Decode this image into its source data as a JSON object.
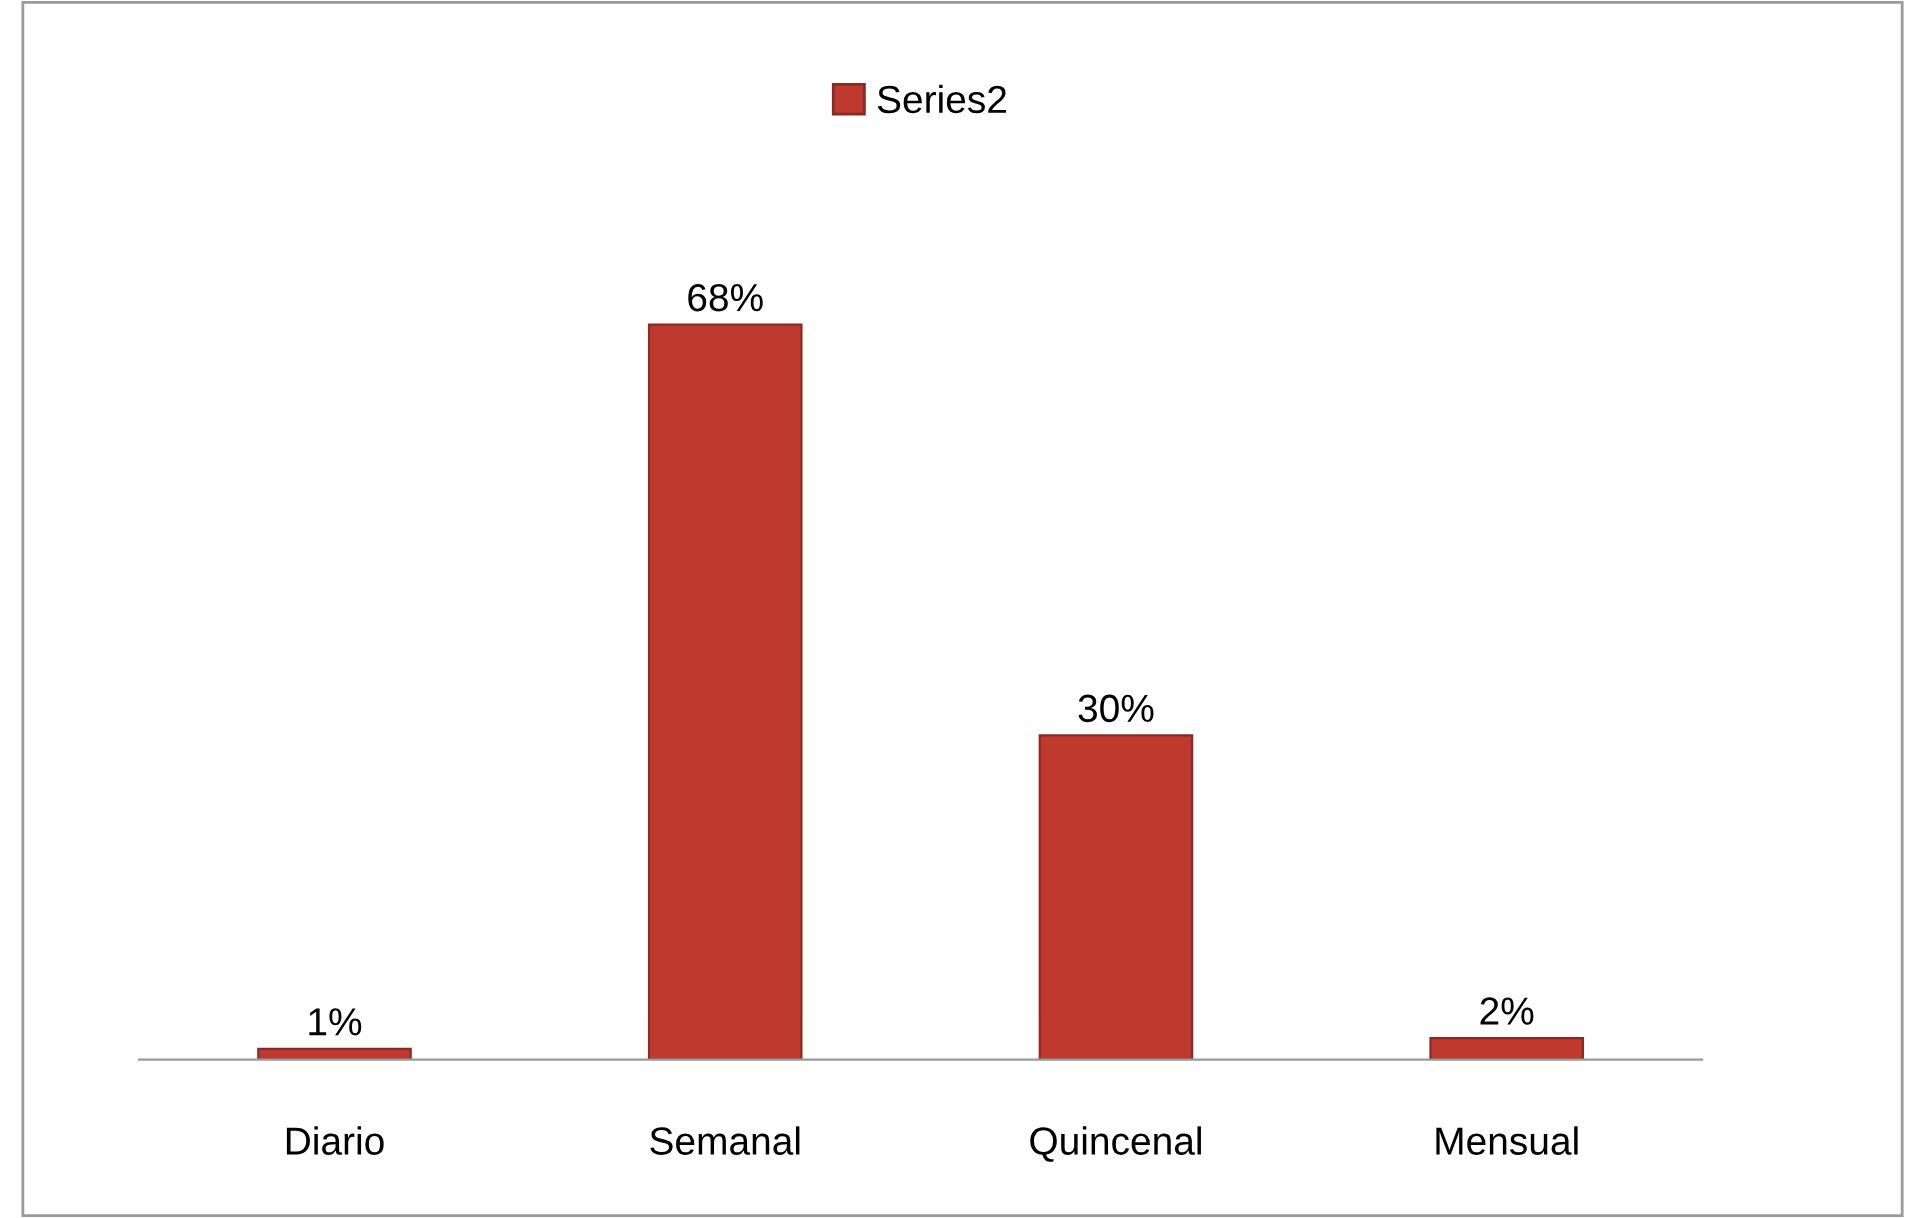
{
  "chart_data": {
    "type": "bar",
    "categories": [
      "Diario",
      "Semanal",
      "Quincenal",
      "Mensual"
    ],
    "series": [
      {
        "name": "Series2",
        "color": "#c0392f",
        "values": [
          1,
          68,
          30,
          2
        ],
        "value_labels": [
          "1%",
          "68%",
          "30%",
          "2%"
        ]
      }
    ],
    "legend": "top",
    "grid": false
  }
}
